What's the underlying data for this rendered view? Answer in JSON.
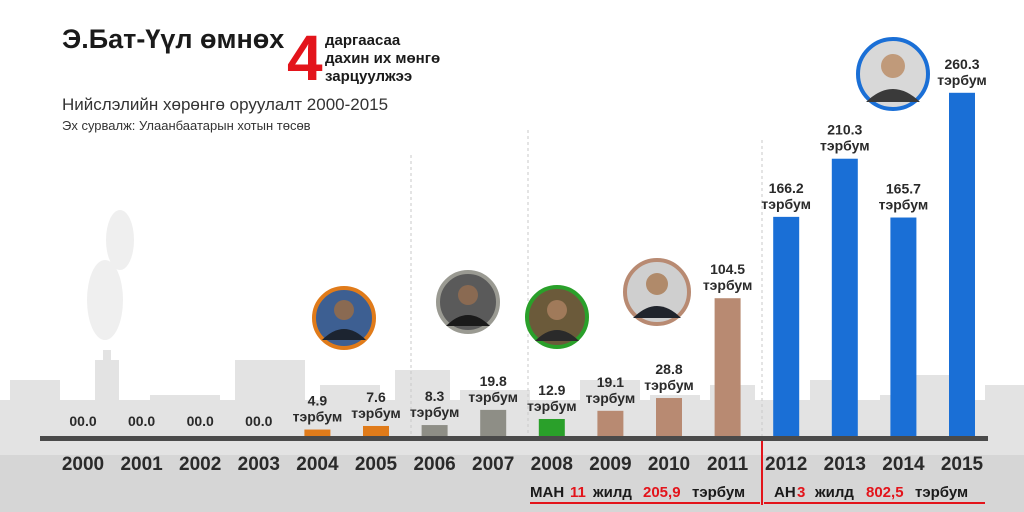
{
  "header": {
    "title": "Э.Бат-Үүл өмнөх",
    "big_number": "4",
    "subtitle_lines": [
      "даргаасаа",
      "дахин их мөнгө",
      "зарцуулжээ"
    ],
    "chart_title": "Нийслэлийн хөрөнгө оруулалт 2000-2015",
    "source": "Эх сурвалж: Улаанбаатарын хотын төсөв"
  },
  "chart_data": {
    "type": "bar",
    "title": "Нийслэлийн хөрөнгө оруулалт 2000-2015",
    "categories": [
      "2000",
      "2001",
      "2002",
      "2003",
      "2004",
      "2005",
      "2006",
      "2007",
      "2008",
      "2009",
      "2010",
      "2011",
      "2012",
      "2013",
      "2014",
      "2015"
    ],
    "values": [
      0.0,
      0.0,
      0.0,
      0.0,
      4.9,
      7.6,
      8.3,
      19.8,
      12.9,
      19.1,
      28.8,
      104.5,
      166.2,
      210.3,
      165.7,
      260.3
    ],
    "value_labels": [
      "00.0",
      "00.0",
      "00.0",
      "00.0",
      "4.9",
      "7.6",
      "8.3",
      "19.8",
      "12.9",
      "19.1",
      "28.8",
      "104.5",
      "166.2",
      "210.3",
      "165.7",
      "260.3"
    ],
    "unit": "тэрбум",
    "bar_colors": [
      "#8a8a8a",
      "#8a8a8a",
      "#8a8a8a",
      "#8a8a8a",
      "#e07b1a",
      "#e07b1a",
      "#8e8e86",
      "#8e8e86",
      "#2aa02a",
      "#b88a72",
      "#b88a72",
      "#b88a72",
      "#1a6fd6",
      "#1a6fd6",
      "#1a6fd6",
      "#1a6fd6"
    ],
    "ylim": [
      0,
      270
    ]
  },
  "footer": {
    "left": {
      "party": "МАН",
      "years": "11",
      "word_years": "жилд",
      "amount": "205,9",
      "unit": "тэрбум"
    },
    "right": {
      "party": "АН",
      "years": "3",
      "word_years": "жилд",
      "amount": "802,5",
      "unit": "тэрбум"
    }
  },
  "colors": {
    "accent_red": "#e3141b",
    "title": "#1a1a1a",
    "axis": "#4a4a4a"
  },
  "portraits": [
    "portrait-2004",
    "portrait-2006",
    "portrait-2008",
    "portrait-2010",
    "portrait-2015"
  ]
}
